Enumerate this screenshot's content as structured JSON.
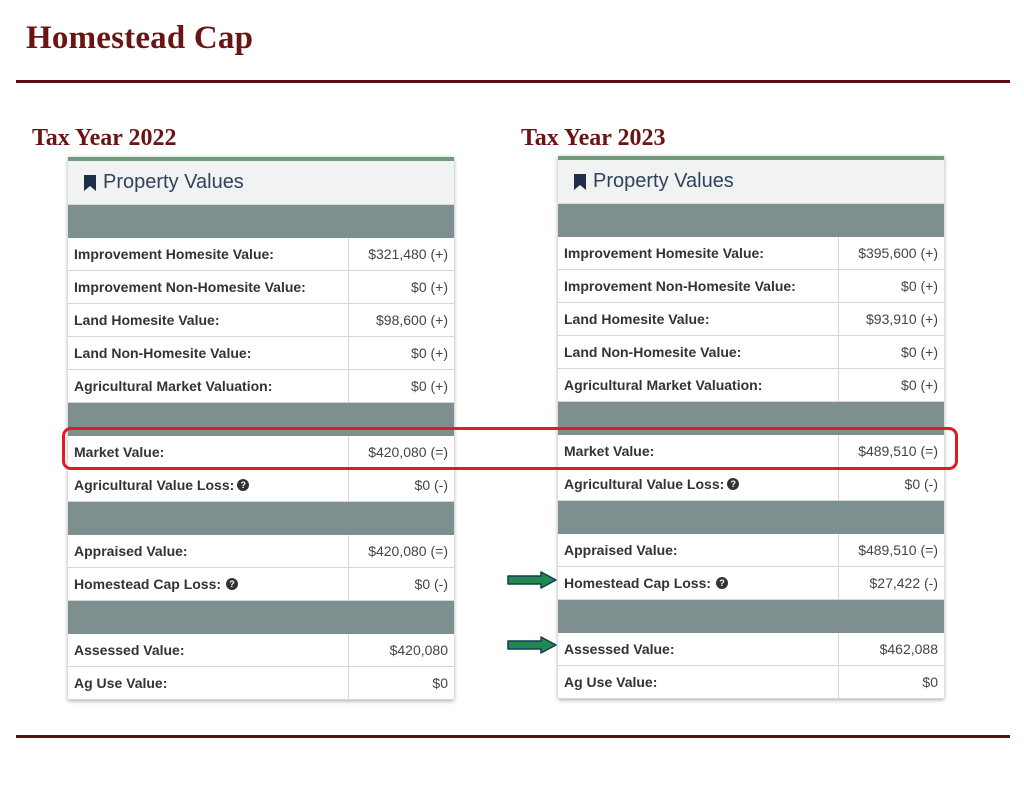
{
  "title": "Homestead Cap",
  "panels": [
    {
      "year_label": "Tax Year 2022",
      "header": "Property Values",
      "rows": [
        {
          "label": "Improvement Homesite Value:",
          "value": "$321,480 (+)"
        },
        {
          "label": "Improvement Non-Homesite Value:",
          "value": "$0 (+)"
        },
        {
          "label": "Land Homesite Value:",
          "value": "$98,600 (+)"
        },
        {
          "label": "Land Non-Homesite Value:",
          "value": "$0 (+)"
        },
        {
          "label": "Agricultural Market Valuation:",
          "value": "$0 (+)"
        },
        {
          "label": "Market Value:",
          "value": "$420,080 (=)"
        },
        {
          "label": "Agricultural Value Loss:",
          "value": "$0 (-)"
        },
        {
          "label": "Appraised Value:",
          "value": "$420,080 (=)"
        },
        {
          "label": "Homestead Cap Loss:",
          "value": "$0 (-)"
        },
        {
          "label": "Assessed Value:",
          "value": "$420,080"
        },
        {
          "label": "Ag Use Value:",
          "value": "$0"
        }
      ]
    },
    {
      "year_label": "Tax Year 2023",
      "header": "Property Values",
      "rows": [
        {
          "label": "Improvement Homesite Value:",
          "value": "$395,600 (+)"
        },
        {
          "label": "Improvement Non-Homesite Value:",
          "value": "$0 (+)"
        },
        {
          "label": "Land Homesite Value:",
          "value": "$93,910 (+)"
        },
        {
          "label": "Land Non-Homesite Value:",
          "value": "$0 (+)"
        },
        {
          "label": "Agricultural Market Valuation:",
          "value": "$0 (+)"
        },
        {
          "label": "Market Value:",
          "value": "$489,510 (=)"
        },
        {
          "label": "Agricultural Value Loss:",
          "value": "$0 (-)"
        },
        {
          "label": "Appraised Value:",
          "value": "$489,510 (=)"
        },
        {
          "label": "Homestead Cap Loss:",
          "value": "$27,422 (-)"
        },
        {
          "label": "Assessed Value:",
          "value": "$462,088"
        },
        {
          "label": "Ag Use Value:",
          "value": "$0"
        }
      ]
    }
  ],
  "colors": {
    "title": "#6b1414",
    "band": "#7d8f8f",
    "highlight": "#e01b24",
    "arrow": "#1f8a4c"
  },
  "icons": {
    "bookmark": "bookmark-icon",
    "help": "question-circle-icon",
    "arrow": "right-arrow-icon"
  }
}
